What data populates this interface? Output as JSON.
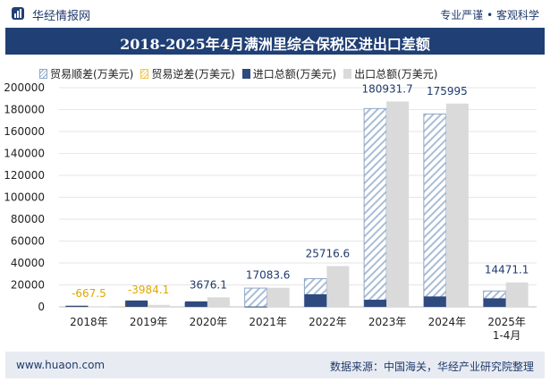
{
  "brand": {
    "name": "华经情报网",
    "slogan": "专业严谨 • 客观科学"
  },
  "footer": {
    "url": "www.huaon.com",
    "source": "数据来源：中国海关，华经产业研究院整理"
  },
  "colors": {
    "surplus": "#a9bdd6",
    "deficit": "#f3c543",
    "import": "#2f4a7f",
    "export": "#dadada",
    "title_bg": "#1f3f75",
    "label_blue": "#1f3a6b",
    "label_orange": "#e0a800"
  },
  "chart_data": {
    "type": "bar",
    "title": "2018-2025年4月满洲里综合保税区进出口差额",
    "categories": [
      "2018年",
      "2019年",
      "2020年",
      "2021年",
      "2022年",
      "2023年",
      "2024年",
      "2025年\n1-4月"
    ],
    "ylim": [
      0,
      200000
    ],
    "yticks": [
      0,
      20000,
      40000,
      60000,
      80000,
      100000,
      120000,
      140000,
      160000,
      180000,
      200000
    ],
    "grid": true,
    "legend_position": "top",
    "series": [
      {
        "name": "贸易顺差(万美元)",
        "values": [
          null,
          null,
          3676.1,
          17083.6,
          25716.6,
          180931.7,
          175995,
          14471.1
        ]
      },
      {
        "name": "贸易逆差(万美元)",
        "values": [
          667.5,
          3984.1,
          null,
          null,
          null,
          null,
          null,
          null
        ]
      },
      {
        "name": "进口总额(万美元)",
        "values": [
          1000,
          5800,
          5000,
          300,
          11500,
          6500,
          9500,
          7800
        ]
      },
      {
        "name": "出口总额(万美元)",
        "values": [
          300,
          1800,
          8700,
          17400,
          37200,
          187400,
          185500,
          22300
        ]
      }
    ],
    "balance_labels": [
      "-667.5",
      "-3984.1",
      "3676.1",
      "17083.6",
      "25716.6",
      "180931.7",
      "175995",
      "14471.1"
    ]
  }
}
